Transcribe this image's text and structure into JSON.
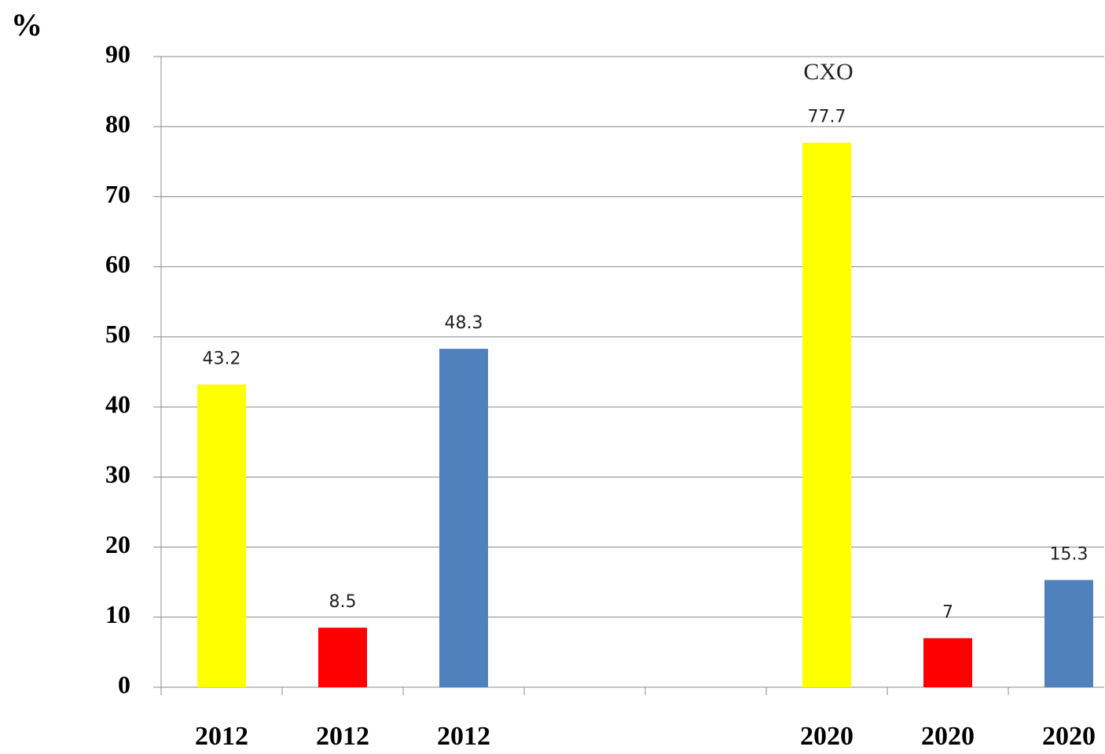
{
  "chart_data": {
    "type": "bar",
    "y_label": "%",
    "annotation": "CXO",
    "categories": [
      "2012",
      "2012",
      "2012",
      null,
      null,
      "2020",
      "2020",
      "2020"
    ],
    "values": [
      43.2,
      8.5,
      48.3,
      null,
      null,
      77.7,
      7,
      15.3
    ],
    "colors": [
      "#ffff00",
      "#ff0000",
      "#4f81bd",
      null,
      null,
      "#ffff00",
      "#ff0000",
      "#4f81bd"
    ],
    "ylim": [
      0,
      90
    ],
    "yticks": [
      0,
      10,
      20,
      30,
      40,
      50,
      60,
      70,
      80,
      90
    ],
    "grid": true
  }
}
